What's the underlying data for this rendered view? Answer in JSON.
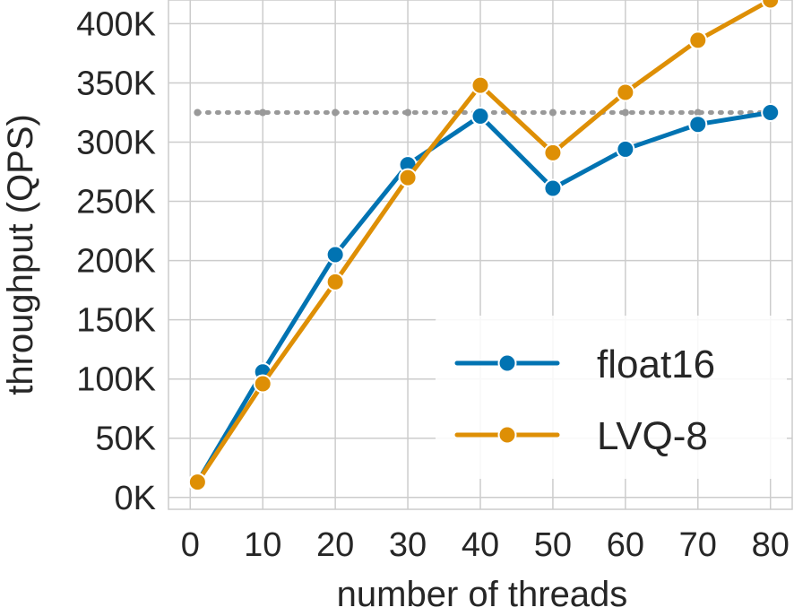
{
  "chart_data": {
    "type": "line",
    "title": "",
    "xlabel": "number of threads",
    "ylabel": "throughput (QPS)",
    "xlim": [
      -3,
      83
    ],
    "ylim": [
      -10000,
      420000
    ],
    "xticks": [
      0,
      10,
      20,
      30,
      40,
      50,
      60,
      70,
      80
    ],
    "yticks": [
      0,
      50000,
      100000,
      150000,
      200000,
      250000,
      300000,
      350000,
      400000
    ],
    "ytick_labels": [
      "0K",
      "50K",
      "100K",
      "150K",
      "200K",
      "250K",
      "300K",
      "350K",
      "400K"
    ],
    "grid": true,
    "legend_position": "lower-right",
    "reference_line": {
      "value": 325000,
      "style": "dotted",
      "color": "#999999",
      "x": [
        1,
        10,
        20,
        30,
        40,
        50,
        60,
        70,
        80
      ]
    },
    "series": [
      {
        "name": "float16",
        "color": "#0173b2",
        "x": [
          1,
          10,
          20,
          30,
          40,
          50,
          60,
          70,
          80
        ],
        "values": [
          13000,
          106000,
          205000,
          281000,
          322000,
          261000,
          294000,
          315000,
          325000
        ]
      },
      {
        "name": "LVQ-8",
        "color": "#de8f05",
        "x": [
          1,
          10,
          20,
          30,
          40,
          50,
          60,
          70,
          80
        ],
        "values": [
          13000,
          96000,
          182000,
          270000,
          348000,
          291000,
          342000,
          386000,
          420000
        ]
      }
    ]
  }
}
